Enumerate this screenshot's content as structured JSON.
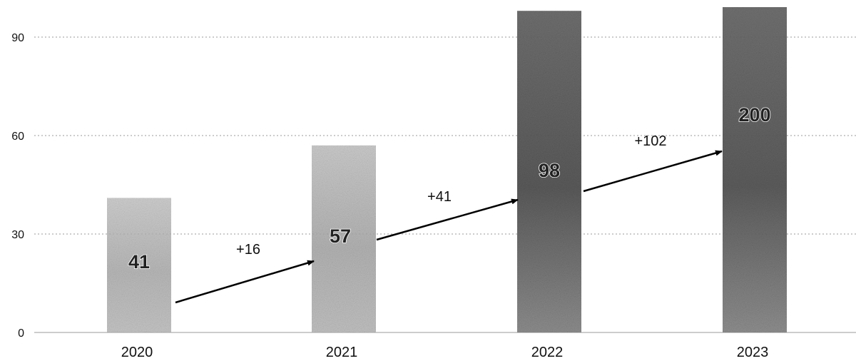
{
  "chart_data": {
    "type": "bar",
    "categories": [
      "2020",
      "2021",
      "2022",
      "2023"
    ],
    "values": [
      41,
      57,
      98,
      200
    ],
    "data_labels": [
      "41",
      "57",
      "98",
      "200"
    ],
    "y_ticks": [
      "0",
      "30",
      "60",
      "90"
    ],
    "ylim": [
      0,
      100
    ],
    "grid": "horizontal dotted",
    "annotations": [
      "+16",
      "+41",
      "+102"
    ],
    "colors": {
      "bar_light": "#c4c4c4",
      "bar_dark": "#6a6a6a",
      "grid": "#999999",
      "arrow": "#000000"
    }
  }
}
